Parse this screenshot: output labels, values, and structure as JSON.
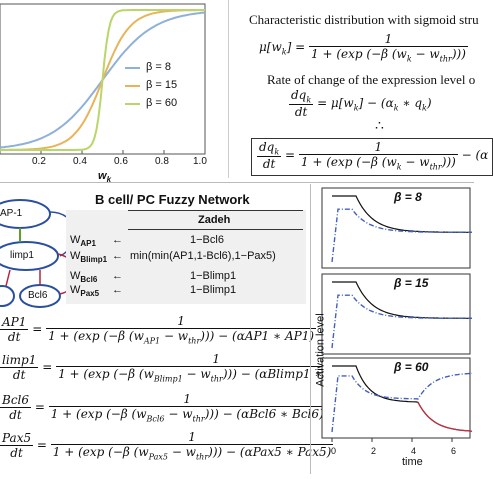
{
  "sigmoid_panel": {
    "xlabel": "w",
    "xlabel_sub": "k",
    "x_ticks": [
      "0.2",
      "0.4",
      "0.6",
      "0.8",
      "1.0"
    ],
    "legend": [
      "β = 8",
      "β = 15",
      "β = 60"
    ],
    "colors": {
      "b8": "#8fb0d8",
      "b15": "#e8b45a",
      "b60": "#b8d66a"
    }
  },
  "equations_panel": {
    "title": "Characteristic distribution with sigmoid stru",
    "mu_lhs": "μ[w",
    "mu_lhs_sub": "k",
    "mu_lhs_end": "] =",
    "mu_num": "1",
    "mu_den": "1 + (exp (−β (w",
    "mu_den_sub1": "k",
    "mu_den_mid": " − w",
    "mu_den_sub2": "thr",
    "mu_den_end": ")))",
    "rate_title": "Rate of change of the expression level o",
    "rate_lhs_num": "dq",
    "rate_lhs_den": "dt",
    "rate_rhs": "= μ[w",
    "rate_rhs_end": "] − (α",
    "rate_rhs_end2": " ∗ q",
    "rate_rhs_close": ")",
    "therefore": "∴",
    "final_num": "1",
    "final_den": "1 + (exp (−β (w",
    "final_den_end": ")))",
    "final_tail": " − (α"
  },
  "network_panel": {
    "title": "B cell/ PC Fuzzy Network",
    "nodes": [
      "AP-1",
      "limp1",
      "Bcl6"
    ],
    "zadeh_header": "Zadeh",
    "rows": [
      {
        "w": "W",
        "sub": "AP1",
        "arrow": "←",
        "rule": "1−Bcl6"
      },
      {
        "w": "W",
        "sub": "Blimp1",
        "arrow": "←",
        "rule": "min(min(AP1,1-Bcl6),1−Pax5)"
      },
      {
        "w": "W",
        "sub": "Bcl6",
        "arrow": "←",
        "rule": "1−Blimp1"
      },
      {
        "w": "W",
        "sub": "Pax5",
        "arrow": "←",
        "rule": "1−Blimp1"
      }
    ]
  },
  "ode_panel": {
    "rows": [
      {
        "lhs": "AP1",
        "num": "1",
        "den": "1 + (exp (−β (w",
        "sub": "AP1",
        "den_end": " − w",
        "thr": "thr",
        "close": ")))",
        "tail": " − (αAP1 ∗ AP1)"
      },
      {
        "lhs": "limp1",
        "num": "1",
        "den": "1 + (exp (−β (w",
        "sub": "Blimp1",
        "den_end": " − w",
        "thr": "thr",
        "close": ")))",
        "tail": " − (αBlimp1 ∗ Blimp1)"
      },
      {
        "lhs": "Bcl6",
        "num": "1",
        "den": "1 + (exp (−β (w",
        "sub": "Bcl6",
        "den_end": " − w",
        "thr": "thr",
        "close": ")))",
        "tail": " − (αBcl6 ∗ Bcl6)"
      },
      {
        "lhs": "Pax5",
        "num": "1",
        "den": "1 + (exp (−β (w",
        "sub": "Pax5",
        "den_end": " − w",
        "thr": "thr",
        "close": ")))",
        "tail": " − (αPax5 ∗ Pax5)"
      }
    ],
    "dt": "dt",
    "tail_dt": "t ="
  },
  "activation_panel": {
    "ylabel": "Activation level",
    "xlabel": "time",
    "x_ticks": [
      "0",
      "2",
      "4",
      "6"
    ],
    "subplots": [
      {
        "label": "β = 8"
      },
      {
        "label": "β = 15"
      },
      {
        "label": "β = 60"
      }
    ]
  }
}
